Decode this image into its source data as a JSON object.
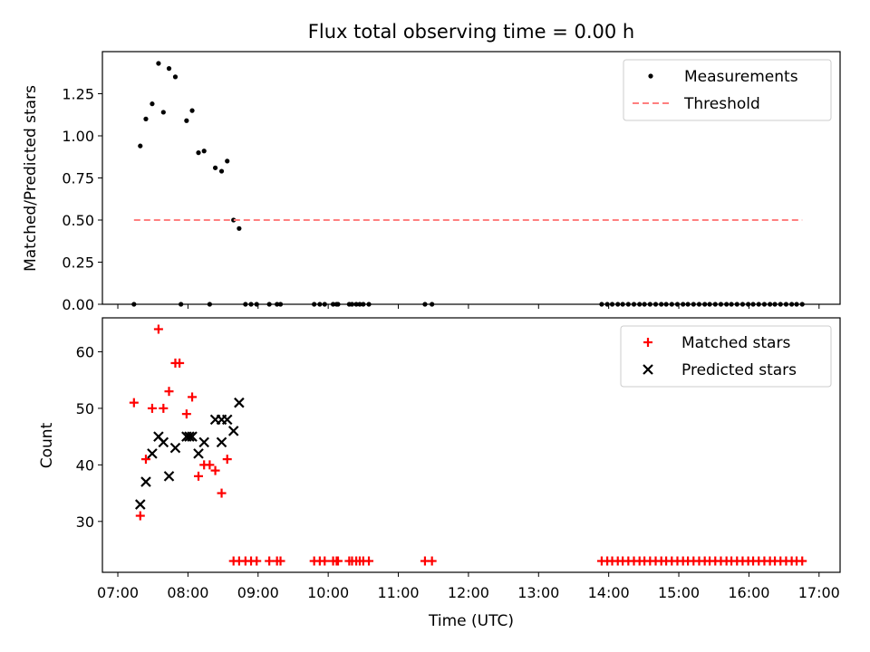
{
  "title": "Flux total observing time = 0.00 h",
  "chart_data": [
    {
      "type": "scatter",
      "ylabel": "Matched/Predicted stars",
      "xlabel": "",
      "xlim": [
        6.78,
        17.3
      ],
      "ylim": [
        0,
        1.5
      ],
      "yticks": [
        0.0,
        0.25,
        0.5,
        0.75,
        1.0,
        1.25
      ],
      "ytick_labels": [
        "0.00",
        "0.25",
        "0.50",
        "0.75",
        "1.00",
        "1.25"
      ],
      "legend": {
        "location": "upper right",
        "entries": [
          "Measurements",
          "Threshold"
        ]
      },
      "series": [
        {
          "name": "Measurements",
          "marker": "dot",
          "color": "#000000",
          "x": [
            7.23,
            7.32,
            7.4,
            7.49,
            7.58,
            7.65,
            7.73,
            7.82,
            7.9,
            7.98,
            8.06,
            8.15,
            8.23,
            8.31,
            8.39,
            8.48,
            8.56,
            8.65,
            8.73,
            8.82,
            8.9,
            8.98,
            9.16,
            9.27,
            9.32,
            9.8,
            9.88,
            9.95,
            10.07,
            10.12,
            10.14,
            10.3,
            10.34,
            10.4,
            10.45,
            10.5,
            10.58,
            11.38,
            11.48,
            13.9,
            13.98,
            14.05,
            14.13,
            14.2,
            14.28,
            14.36,
            14.44,
            14.51,
            14.59,
            14.67,
            14.75,
            14.82,
            14.9,
            14.98,
            15.06,
            15.13,
            15.21,
            15.29,
            15.37,
            15.44,
            15.52,
            15.6,
            15.68,
            15.75,
            15.83,
            15.91,
            15.99,
            16.06,
            16.14,
            16.22,
            16.3,
            16.37,
            16.45,
            16.53,
            16.61,
            16.68,
            16.76
          ],
          "y": [
            0.0,
            0.94,
            1.1,
            1.19,
            1.43,
            1.14,
            1.4,
            1.35,
            0.0,
            1.09,
            1.15,
            0.9,
            0.91,
            0.0,
            0.81,
            0.79,
            0.85,
            0.5,
            0.45,
            0.0,
            0.0,
            0.0,
            0.0,
            0.0,
            0.0,
            0.0,
            0.0,
            0.0,
            0.0,
            0.0,
            0.0,
            0.0,
            0.0,
            0.0,
            0.0,
            0.0,
            0.0,
            0.0,
            0.0,
            0.0,
            0.0,
            0.0,
            0.0,
            0.0,
            0.0,
            0.0,
            0.0,
            0.0,
            0.0,
            0.0,
            0.0,
            0.0,
            0.0,
            0.0,
            0.0,
            0.0,
            0.0,
            0.0,
            0.0,
            0.0,
            0.0,
            0.0,
            0.0,
            0.0,
            0.0,
            0.0,
            0.0,
            0.0,
            0.0,
            0.0,
            0.0,
            0.0,
            0.0,
            0.0,
            0.0,
            0.0,
            0.0
          ]
        },
        {
          "name": "Threshold",
          "marker": "dashed-line",
          "color": "#ff7f7f",
          "x": [
            7.23,
            16.76
          ],
          "y": [
            0.5,
            0.5
          ]
        }
      ]
    },
    {
      "type": "scatter",
      "ylabel": "Count",
      "xlabel": "Time (UTC)",
      "xlim": [
        6.78,
        17.3
      ],
      "ylim": [
        21,
        66
      ],
      "yticks": [
        30,
        40,
        50,
        60
      ],
      "ytick_labels": [
        "30",
        "40",
        "50",
        "60"
      ],
      "xticks": [
        7,
        8,
        9,
        10,
        11,
        12,
        13,
        14,
        15,
        16,
        17
      ],
      "xtick_labels": [
        "07:00",
        "08:00",
        "09:00",
        "10:00",
        "11:00",
        "12:00",
        "13:00",
        "14:00",
        "15:00",
        "16:00",
        "17:00"
      ],
      "legend": {
        "location": "upper right",
        "entries": [
          "Matched stars",
          "Predicted stars"
        ]
      },
      "series": [
        {
          "name": "Matched stars",
          "marker": "plus",
          "color": "#ff0000",
          "x": [
            7.23,
            7.32,
            7.4,
            7.49,
            7.58,
            7.65,
            7.73,
            7.82,
            7.88,
            7.98,
            8.06,
            8.15,
            8.23,
            8.31,
            8.39,
            8.48,
            8.56,
            8.65,
            8.73,
            8.82,
            8.9,
            8.98,
            9.16,
            9.27,
            9.32,
            9.8,
            9.88,
            9.95,
            10.07,
            10.12,
            10.14,
            10.3,
            10.34,
            10.4,
            10.45,
            10.5,
            10.58,
            11.38,
            11.48,
            13.9,
            13.98,
            14.05,
            14.13,
            14.2,
            14.28,
            14.36,
            14.44,
            14.51,
            14.59,
            14.67,
            14.75,
            14.82,
            14.9,
            14.98,
            15.06,
            15.13,
            15.21,
            15.29,
            15.37,
            15.44,
            15.52,
            15.6,
            15.68,
            15.75,
            15.83,
            15.91,
            15.99,
            16.06,
            16.14,
            16.22,
            16.3,
            16.37,
            16.45,
            16.53,
            16.61,
            16.68,
            16.76
          ],
          "y": [
            51,
            31,
            41,
            50,
            64,
            50,
            53,
            58,
            58,
            49,
            52,
            38,
            40,
            40,
            39,
            35,
            41,
            23,
            23,
            23,
            23,
            23,
            23,
            23,
            23,
            23,
            23,
            23,
            23,
            23,
            23,
            23,
            23,
            23,
            23,
            23,
            23,
            23,
            23,
            23,
            23,
            23,
            23,
            23,
            23,
            23,
            23,
            23,
            23,
            23,
            23,
            23,
            23,
            23,
            23,
            23,
            23,
            23,
            23,
            23,
            23,
            23,
            23,
            23,
            23,
            23,
            23,
            23,
            23,
            23,
            23,
            23,
            23,
            23,
            23,
            23,
            23
          ]
        },
        {
          "name": "Predicted stars",
          "marker": "x",
          "color": "#000000",
          "x": [
            7.32,
            7.4,
            7.49,
            7.58,
            7.65,
            7.73,
            7.82,
            7.98,
            8.02,
            8.06,
            8.15,
            8.23,
            8.39,
            8.48,
            8.48,
            8.56,
            8.65,
            8.73
          ],
          "y": [
            33,
            37,
            42,
            45,
            44,
            38,
            43,
            45,
            45,
            45,
            42,
            44,
            48,
            48,
            44,
            48,
            46,
            51
          ]
        }
      ]
    }
  ]
}
